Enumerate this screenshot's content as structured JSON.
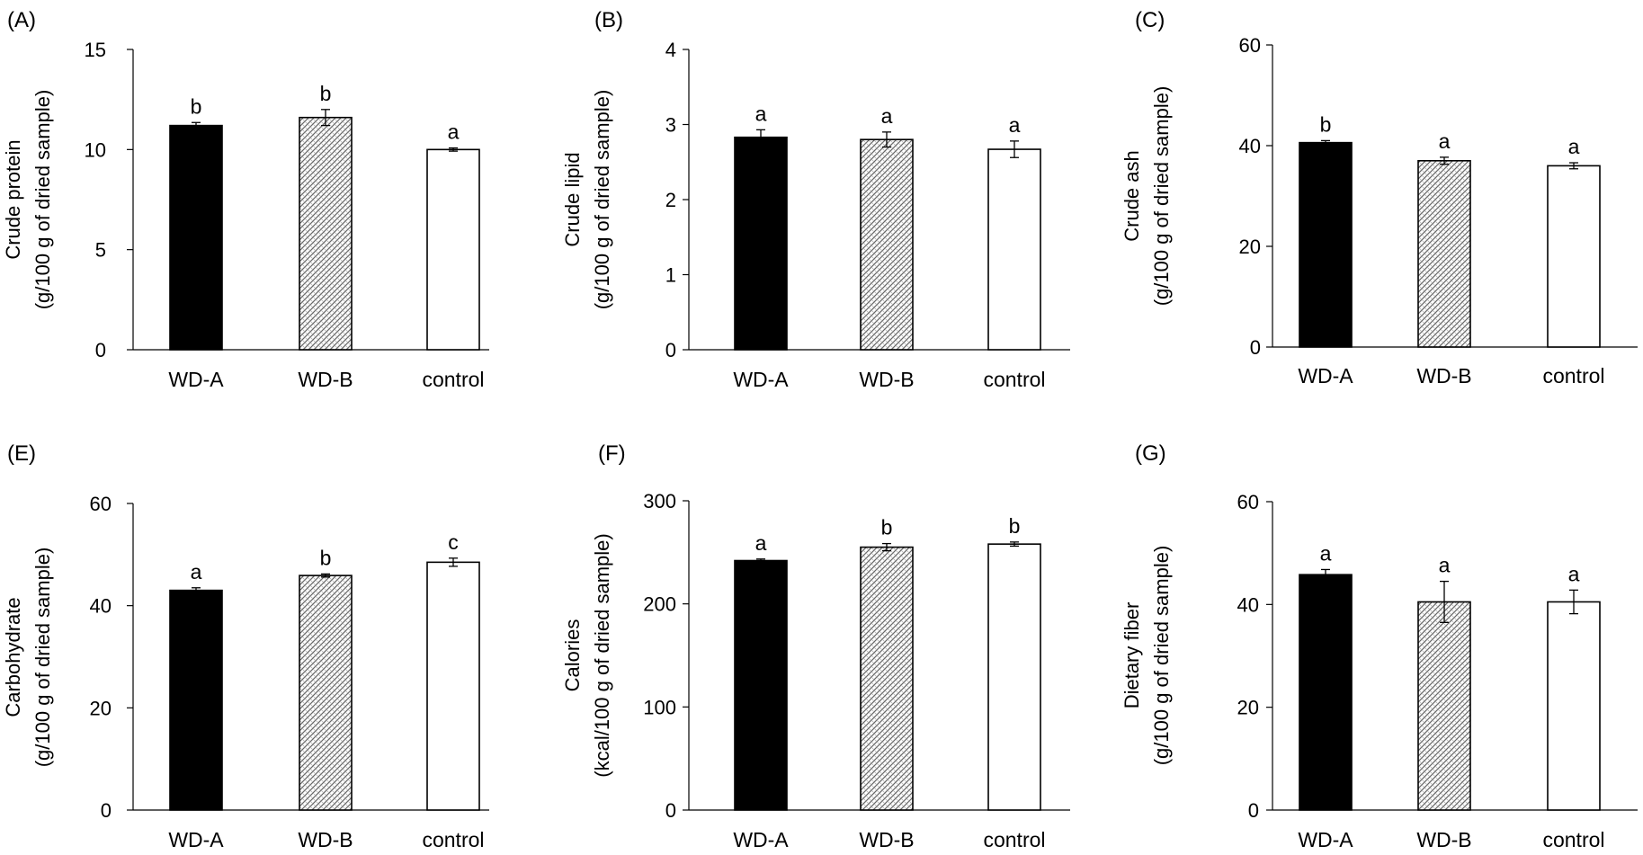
{
  "chart_data": [
    {
      "type": "bar",
      "panel_label": "(A)",
      "ylabel_line1": "Crude protein",
      "ylabel_line2": "(g/100 g of dried sample)",
      "categories": [
        "WD-A",
        "WD-B",
        "control"
      ],
      "values": [
        11.2,
        11.6,
        10.0
      ],
      "errors": [
        0.15,
        0.4,
        0.08
      ],
      "letters": [
        "b",
        "b",
        "a"
      ],
      "ylim": [
        0,
        15
      ],
      "yticks": [
        0,
        5,
        10,
        15
      ]
    },
    {
      "type": "bar",
      "panel_label": "(B)",
      "ylabel_line1": "Crude lipid",
      "ylabel_line2": "(g/100 g of dried sample)",
      "categories": [
        "WD-A",
        "WD-B",
        "control"
      ],
      "values": [
        2.83,
        2.8,
        2.67
      ],
      "errors": [
        0.1,
        0.1,
        0.11
      ],
      "letters": [
        "a",
        "a",
        "a"
      ],
      "ylim": [
        0,
        4
      ],
      "yticks": [
        0,
        1,
        2,
        3,
        4
      ]
    },
    {
      "type": "bar",
      "panel_label": "(C)",
      "ylabel_line1": "Crude ash",
      "ylabel_line2": "(g/100 g of dried sample)",
      "categories": [
        "WD-A",
        "WD-B",
        "control"
      ],
      "values": [
        40.6,
        37.0,
        36.0
      ],
      "errors": [
        0.4,
        0.7,
        0.6
      ],
      "letters": [
        "b",
        "a",
        "a"
      ],
      "ylim": [
        0,
        60
      ],
      "yticks": [
        0,
        20,
        40,
        60
      ]
    },
    {
      "type": "bar",
      "panel_label": "(E)",
      "ylabel_line1": "Carbohydrate",
      "ylabel_line2": "(g/100 g of dried sample)",
      "categories": [
        "WD-A",
        "WD-B",
        "control"
      ],
      "values": [
        43.0,
        45.9,
        48.5
      ],
      "errors": [
        0.5,
        0.3,
        0.8
      ],
      "letters": [
        "a",
        "b",
        "c"
      ],
      "ylim": [
        0,
        60
      ],
      "yticks": [
        0,
        20,
        40,
        60
      ]
    },
    {
      "type": "bar",
      "panel_label": "(F)",
      "ylabel_line1": "Calories",
      "ylabel_line2": "(kcal/100 g of dried sample)",
      "categories": [
        "WD-A",
        "WD-B",
        "control"
      ],
      "values": [
        242,
        255,
        258
      ],
      "errors": [
        1.5,
        3.5,
        2
      ],
      "letters": [
        "a",
        "b",
        "b"
      ],
      "ylim": [
        0,
        300
      ],
      "yticks": [
        0,
        100,
        200,
        300
      ]
    },
    {
      "type": "bar",
      "panel_label": "(G)",
      "ylabel_line1": "Dietary fiber",
      "ylabel_line2": "(g/100 g of dried sample)",
      "categories": [
        "WD-A",
        "WD-B",
        "control"
      ],
      "values": [
        45.8,
        40.5,
        40.5
      ],
      "errors": [
        1.0,
        4.0,
        2.3
      ],
      "letters": [
        "a",
        "a",
        "a"
      ],
      "ylim": [
        0,
        60
      ],
      "yticks": [
        0,
        20,
        40,
        60
      ]
    }
  ]
}
